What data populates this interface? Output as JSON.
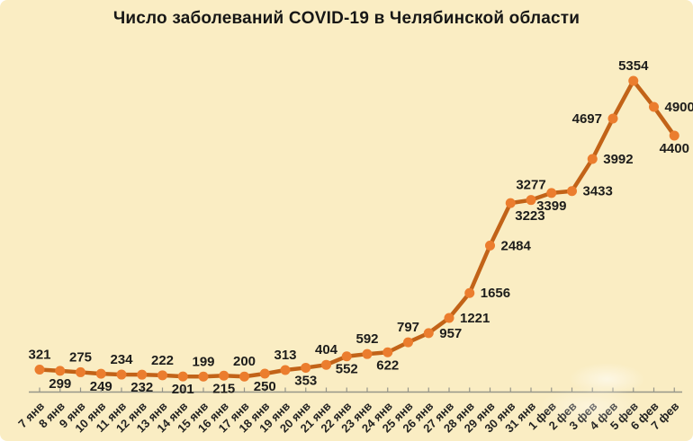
{
  "chart_data": {
    "type": "line",
    "title": "Число заболеваний COVID-19 в Челябинской области",
    "categories": [
      "7 янв",
      "8 янв",
      "9 янв",
      "10 янв",
      "11 янв",
      "12 янв",
      "13 янв",
      "14 янв",
      "15 янв",
      "16 янв",
      "17 янв",
      "18 янв",
      "19 янв",
      "20 янв",
      "21 янв",
      "22 янв",
      "23 янв",
      "24 янв",
      "25 янв",
      "26 янв",
      "27 янв",
      "28 янв",
      "29 янв",
      "30 янв",
      "31 янв",
      "1 фев",
      "2 фев",
      "3 фев",
      "4 фев",
      "5 фев",
      "6 фев",
      "7 фев"
    ],
    "values": [
      321,
      299,
      275,
      249,
      234,
      232,
      222,
      201,
      199,
      215,
      200,
      250,
      313,
      353,
      404,
      552,
      592,
      622,
      797,
      957,
      1221,
      1656,
      2484,
      3223,
      3277,
      3399,
      3433,
      3992,
      4697,
      5354,
      4900,
      4400
    ],
    "label_placements": [
      "above",
      "below",
      "above",
      "below",
      "above",
      "below",
      "above",
      "below",
      "above",
      "below",
      "above",
      "below",
      "above",
      "below",
      "above",
      "below",
      "above",
      "below",
      "above",
      "right",
      "right",
      "right",
      "right",
      "below-right",
      "above",
      "below",
      "right",
      "right",
      "left",
      "above",
      "right",
      "below"
    ],
    "xlabel": "",
    "ylabel": "",
    "y_axis": {
      "visible": false,
      "min": 0,
      "max": 5500
    },
    "x_axis": {
      "tick_label_rotation": -45,
      "ticks_at_each_category": true
    },
    "grid": false,
    "legend": false,
    "data_labels_shown": true,
    "colors": {
      "background": "#FAEDC3",
      "line": "#C26318",
      "marker": "#EB7D2E",
      "label_text": "#1D1D1B",
      "title_text": "#171716",
      "axis": "#96968A"
    }
  }
}
